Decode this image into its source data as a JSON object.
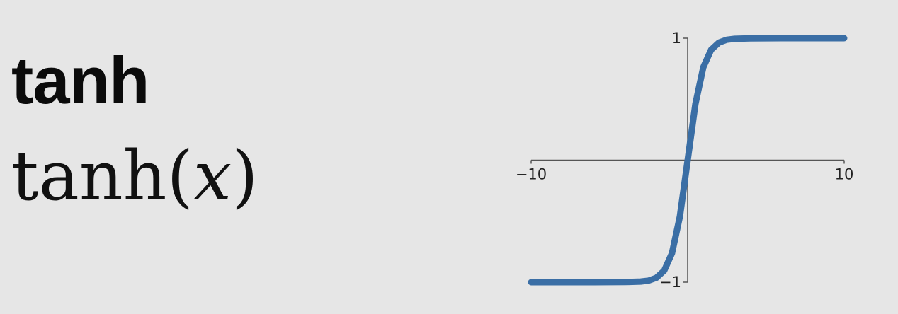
{
  "slide": {
    "title": "tanh",
    "formula": {
      "func": "tanh",
      "open": "(",
      "var": "x",
      "close": ")"
    }
  },
  "chart_data": {
    "type": "line",
    "title": "",
    "xlabel": "",
    "ylabel": "",
    "xlim": [
      -10,
      10
    ],
    "ylim": [
      -1,
      1
    ],
    "x_ticks": [
      -10,
      10
    ],
    "x_tick_labels": [
      "−10",
      "10"
    ],
    "y_ticks": [
      1,
      -1
    ],
    "y_tick_labels": [
      "1",
      "−1"
    ],
    "grid": false,
    "series": [
      {
        "color": "#3a6ea5",
        "x": [
          -10,
          -8,
          -6,
          -4,
          -3,
          -2.5,
          -2,
          -1.5,
          -1,
          -0.5,
          0,
          0.5,
          1,
          1.5,
          2,
          2.5,
          3,
          4,
          6,
          8,
          10
        ],
        "y": [
          -1,
          -1,
          -1,
          -0.999,
          -0.995,
          -0.987,
          -0.964,
          -0.905,
          -0.762,
          -0.462,
          0,
          0.462,
          0.762,
          0.905,
          0.964,
          0.987,
          0.995,
          0.999,
          1,
          1,
          1
        ]
      }
    ]
  }
}
